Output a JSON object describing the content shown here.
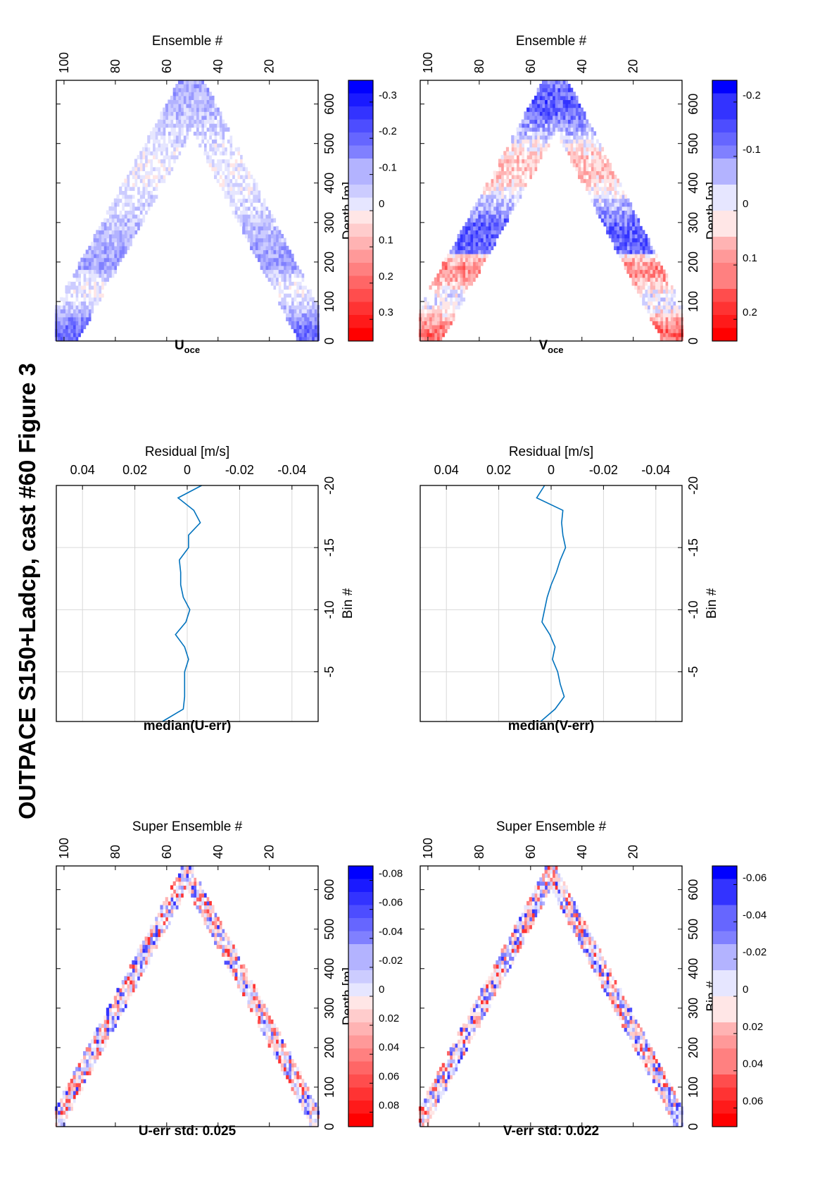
{
  "figure": {
    "title": "OUTPACE S150+Ladcp, cast #60  Figure 3"
  },
  "colormap": {
    "negative_color": "#0000ff",
    "zero_color": "#ffffff",
    "positive_color": "#ff0000",
    "line_color": "#0072bd",
    "grid_color": "#d9d9d9",
    "steps": 20
  },
  "chart_data": [
    {
      "id": "u_err",
      "type": "heatmap",
      "title": "U-err std: 0.025",
      "xlabel": "Super Ensemble #",
      "ylabel": "Depth [m]",
      "xlim": [
        1,
        103
      ],
      "ylim": [
        0,
        660
      ],
      "y_reversed": true,
      "xticks": [
        20,
        40,
        60,
        80,
        100
      ],
      "yticks": [
        0,
        100,
        200,
        300,
        400,
        500,
        600
      ],
      "cast": {
        "bottom_x": 52,
        "bottom_depth": 650,
        "x_end": 103,
        "end_depth": 20,
        "band_width_m": 70
      },
      "pattern": "noise",
      "color_range": [
        -0.09,
        0.09
      ],
      "colorbar_ticks": [
        "0.08",
        "0.06",
        "0.04",
        "0.02",
        "0",
        "-0.02",
        "-0.04",
        "-0.06",
        "-0.08"
      ],
      "colorbar_values": [
        0.08,
        0.06,
        0.04,
        0.02,
        0,
        -0.02,
        -0.04,
        -0.06,
        -0.08
      ],
      "seed": 11
    },
    {
      "id": "u_res",
      "type": "line",
      "title": "median(U-err)",
      "xlabel": "Residual [m/s]",
      "ylabel": "Bin #",
      "xlim": [
        -0.05,
        0.05
      ],
      "ylim": [
        -1,
        -20
      ],
      "xticks": [
        -0.04,
        -0.02,
        0,
        0.02,
        0.04
      ],
      "xtick_labels": [
        "-0.04",
        "-0.02",
        "0",
        "0.02",
        "0.04"
      ],
      "yticks": [
        -5,
        -10,
        -15,
        -20
      ],
      "ytick_labels": [
        "-5",
        "-10",
        "-15",
        "-20"
      ],
      "grid": true,
      "bins": [
        -1,
        -2,
        -3,
        -4,
        -5,
        -6,
        -7,
        -8,
        -9,
        -10,
        -11,
        -12,
        -13,
        -14,
        -15,
        -16,
        -17,
        -18,
        -19,
        -20
      ],
      "values": [
        0.0095,
        0.0015,
        0.001,
        0.001,
        0.001,
        -0.0005,
        0.001,
        0.0045,
        0.0005,
        -0.001,
        0.0015,
        0.0025,
        0.0025,
        0.003,
        -0.0005,
        -0.0005,
        -0.005,
        -0.0025,
        0.0035,
        -0.0055
      ]
    },
    {
      "id": "u_oce",
      "type": "heatmap",
      "title": "U",
      "title_sub": "oce",
      "xlabel": "Ensemble #",
      "ylabel": "Depth [m]",
      "xlim": [
        1,
        103
      ],
      "ylim": [
        0,
        660
      ],
      "y_reversed": true,
      "xticks": [
        20,
        40,
        60,
        80,
        100
      ],
      "yticks": [
        0,
        100,
        200,
        300,
        400,
        500,
        600
      ],
      "cast": {
        "bottom_x": 50,
        "bottom_depth": 650,
        "x_end": 103,
        "end_depth": 20,
        "band_width_m": 170
      },
      "pattern": "u_profile",
      "color_range": [
        -0.36,
        0.36
      ],
      "colorbar_ticks": [
        "0.3",
        "0.2",
        "0.1",
        "0",
        "-0.1",
        "-0.2",
        "-0.3"
      ],
      "colorbar_values": [
        0.3,
        0.2,
        0.1,
        0,
        -0.1,
        -0.2,
        -0.3
      ],
      "seed": 23
    },
    {
      "id": "v_err",
      "type": "heatmap",
      "title": "V-err std: 0.022",
      "xlabel": "Super Ensemble #",
      "ylabel": "Bin #",
      "xlim": [
        1,
        103
      ],
      "ylim": [
        0,
        660
      ],
      "y_reversed": true,
      "xticks": [
        20,
        40,
        60,
        80,
        100
      ],
      "yticks": [
        0,
        100,
        200,
        300,
        400,
        500,
        600
      ],
      "cast": {
        "bottom_x": 52,
        "bottom_depth": 650,
        "x_end": 103,
        "end_depth": 20,
        "band_width_m": 70
      },
      "pattern": "noise",
      "color_range": [
        -0.07,
        0.07
      ],
      "colorbar_ticks": [
        "0.06",
        "0.04",
        "0.02",
        "0",
        "-0.02",
        "-0.04",
        "-0.06"
      ],
      "colorbar_values": [
        0.06,
        0.04,
        0.02,
        0,
        -0.02,
        -0.04,
        -0.06
      ],
      "seed": 37
    },
    {
      "id": "v_res",
      "type": "line",
      "title": "median(V-err)",
      "xlabel": "Residual [m/s]",
      "ylabel": "Bin #",
      "xlim": [
        -0.05,
        0.05
      ],
      "ylim": [
        -1,
        -20
      ],
      "xticks": [
        -0.04,
        -0.02,
        0,
        0.02,
        0.04
      ],
      "xtick_labels": [
        "-0.04",
        "-0.02",
        "0",
        "0.02",
        "0.04"
      ],
      "yticks": [
        -5,
        -10,
        -15,
        -20
      ],
      "ytick_labels": [
        "-5",
        "-10",
        "-15",
        "-20"
      ],
      "grid": true,
      "bins": [
        -1,
        -2,
        -3,
        -4,
        -5,
        -6,
        -7,
        -8,
        -9,
        -10,
        -11,
        -12,
        -13,
        -14,
        -15,
        -16,
        -17,
        -18,
        -19,
        -20
      ],
      "values": [
        0.004,
        -0.0015,
        -0.005,
        -0.0035,
        -0.0025,
        -0.0005,
        -0.0015,
        0.0005,
        0.0035,
        0.0025,
        0.0015,
        0.0,
        -0.002,
        -0.0035,
        -0.0055,
        -0.0045,
        -0.004,
        -0.0045,
        0.0055,
        0.0025
      ]
    },
    {
      "id": "v_oce",
      "type": "heatmap",
      "title": "V",
      "title_sub": "oce",
      "xlabel": "Ensemble #",
      "ylabel": "Depth [m]",
      "xlim": [
        1,
        103
      ],
      "ylim": [
        0,
        660
      ],
      "y_reversed": true,
      "xticks": [
        20,
        40,
        60,
        80,
        100
      ],
      "yticks": [
        0,
        100,
        200,
        300,
        400,
        500,
        600
      ],
      "cast": {
        "bottom_x": 50,
        "bottom_depth": 650,
        "x_end": 103,
        "end_depth": 20,
        "band_width_m": 170
      },
      "pattern": "v_profile",
      "color_range": [
        -0.24,
        0.24
      ],
      "colorbar_ticks": [
        "0.2",
        "0.1",
        "0",
        "-0.1",
        "-0.2"
      ],
      "colorbar_values": [
        0.2,
        0.1,
        0,
        -0.1,
        -0.2
      ],
      "seed": 51
    }
  ]
}
